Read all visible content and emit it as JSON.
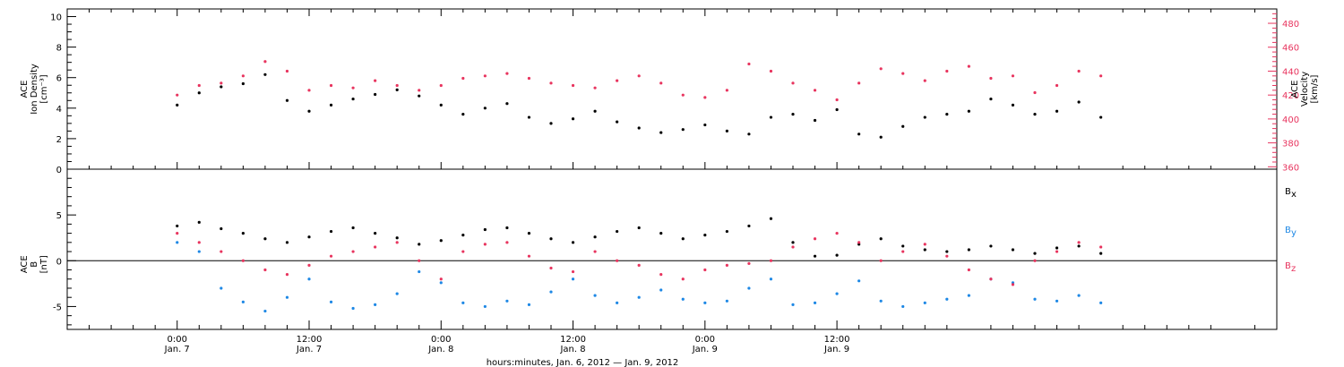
{
  "colors": {
    "black": "#000000",
    "red": "#e8355f",
    "blue": "#1e88e5"
  },
  "chart_data": [
    {
      "type": "scatter",
      "panel": "top",
      "left_axis": {
        "label_line1": "ACE",
        "label_line2": "Ion Density",
        "units": "[cm⁻³]",
        "ylim": [
          0,
          10.5
        ],
        "ticks": [
          0,
          2,
          4,
          6,
          8,
          10
        ]
      },
      "right_axis": {
        "label_line1": "ACE",
        "label_line2": "Velocity",
        "units": "[km/s]",
        "ylim": [
          358,
          492
        ],
        "ticks": [
          360,
          380,
          400,
          420,
          440,
          460,
          480
        ]
      },
      "series": [
        {
          "color": "#000000",
          "axis": "left",
          "x_hours": [
            0,
            2,
            4,
            6,
            8,
            10,
            12,
            14,
            16,
            18,
            20,
            22,
            24,
            26,
            28,
            30,
            32,
            34,
            36,
            38,
            40,
            42,
            44,
            46,
            48,
            50,
            52,
            54,
            56,
            58,
            60,
            62,
            64,
            66,
            68,
            70,
            72,
            74,
            76,
            78,
            80,
            82,
            84
          ],
          "values": [
            4.2,
            5.0,
            5.4,
            5.6,
            6.2,
            4.5,
            3.8,
            4.2,
            4.6,
            4.9,
            5.2,
            4.8,
            4.2,
            3.6,
            4.0,
            4.3,
            3.4,
            3.0,
            3.3,
            3.8,
            3.1,
            2.7,
            2.4,
            2.6,
            2.9,
            2.5,
            2.3,
            3.4,
            3.6,
            3.2,
            3.9,
            2.3,
            2.1,
            2.8,
            3.4,
            3.6,
            3.8,
            4.6,
            4.2,
            3.6,
            3.8,
            4.4,
            3.4
          ]
        },
        {
          "color": "#e8355f",
          "axis": "right",
          "x_hours": [
            0,
            2,
            4,
            6,
            8,
            10,
            12,
            14,
            16,
            18,
            20,
            22,
            24,
            26,
            28,
            30,
            32,
            34,
            36,
            38,
            40,
            42,
            44,
            46,
            48,
            50,
            52,
            54,
            56,
            58,
            60,
            62,
            64,
            66,
            68,
            70,
            72,
            74,
            76,
            78,
            80,
            82,
            84
          ],
          "values": [
            420,
            428,
            430,
            436,
            448,
            440,
            424,
            428,
            426,
            432,
            428,
            424,
            428,
            434,
            436,
            438,
            434,
            430,
            428,
            426,
            432,
            436,
            430,
            420,
            418,
            424,
            446,
            440,
            430,
            424,
            416,
            430,
            442,
            438,
            432,
            440,
            444,
            434,
            436,
            422,
            428,
            440,
            436
          ]
        }
      ]
    },
    {
      "type": "scatter",
      "panel": "bottom",
      "left_axis": {
        "label_line1": "ACE",
        "label_line2": "B",
        "units": "[nT]",
        "ylim": [
          -7.5,
          10
        ],
        "ticks": [
          -5,
          0,
          5
        ]
      },
      "series": [
        {
          "name": "Bx",
          "color": "#000000",
          "x_hours": [
            0,
            2,
            4,
            6,
            8,
            10,
            12,
            14,
            16,
            18,
            20,
            22,
            24,
            26,
            28,
            30,
            32,
            34,
            36,
            38,
            40,
            42,
            44,
            46,
            48,
            50,
            52,
            54,
            56,
            58,
            60,
            62,
            64,
            66,
            68,
            70,
            72,
            74,
            76,
            78,
            80,
            82,
            84
          ],
          "values": [
            3.8,
            4.2,
            3.5,
            3.0,
            2.4,
            2.0,
            2.6,
            3.2,
            3.6,
            3.0,
            2.5,
            1.8,
            2.2,
            2.8,
            3.4,
            3.6,
            3.0,
            2.4,
            2.0,
            2.6,
            3.2,
            3.6,
            3.0,
            2.4,
            2.8,
            3.2,
            3.8,
            4.6,
            2.0,
            0.5,
            0.6,
            1.8,
            2.4,
            1.6,
            1.2,
            1.0,
            1.2,
            1.6,
            1.2,
            0.8,
            1.4,
            1.6,
            0.8
          ]
        },
        {
          "name": "By",
          "color": "#1e88e5",
          "x_hours": [
            0,
            2,
            4,
            6,
            8,
            10,
            12,
            14,
            16,
            18,
            20,
            22,
            24,
            26,
            28,
            30,
            32,
            34,
            36,
            38,
            40,
            42,
            44,
            46,
            48,
            50,
            52,
            54,
            56,
            58,
            60,
            62,
            64,
            66,
            68,
            70,
            72,
            74,
            76,
            78,
            80,
            82,
            84
          ],
          "values": [
            2.0,
            1.0,
            -3.0,
            -4.5,
            -5.5,
            -4.0,
            -2.0,
            -4.5,
            -5.2,
            -4.8,
            -3.6,
            -1.2,
            -2.4,
            -4.6,
            -5.0,
            -4.4,
            -4.8,
            -3.4,
            -2.0,
            -3.8,
            -4.6,
            -4.0,
            -3.2,
            -4.2,
            -4.6,
            -4.4,
            -3.0,
            -2.0,
            -4.8,
            -4.6,
            -3.6,
            -2.2,
            -4.4,
            -5.0,
            -4.6,
            -4.2,
            -3.8,
            -2.0,
            -2.4,
            -4.2,
            -4.4,
            -3.8,
            -4.6
          ]
        },
        {
          "name": "Bz",
          "color": "#e8355f",
          "x_hours": [
            0,
            2,
            4,
            6,
            8,
            10,
            12,
            14,
            16,
            18,
            20,
            22,
            24,
            26,
            28,
            30,
            32,
            34,
            36,
            38,
            40,
            42,
            44,
            46,
            48,
            50,
            52,
            54,
            56,
            58,
            60,
            62,
            64,
            66,
            68,
            70,
            72,
            74,
            76,
            78,
            80,
            82,
            84
          ],
          "values": [
            3.0,
            2.0,
            1.0,
            0.0,
            -1.0,
            -1.5,
            -0.5,
            0.5,
            1.0,
            1.5,
            2.0,
            0.0,
            -2.0,
            1.0,
            1.8,
            2.0,
            0.5,
            -0.8,
            -1.2,
            1.0,
            0.0,
            -0.5,
            -1.5,
            -2.0,
            -1.0,
            -0.5,
            -0.3,
            0.0,
            1.5,
            2.4,
            3.0,
            2.0,
            0.0,
            1.0,
            1.8,
            0.5,
            -1.0,
            -2.0,
            -2.6,
            0.0,
            1.0,
            2.0,
            1.5
          ]
        }
      ],
      "legend": {
        "placement": "right",
        "entries": [
          {
            "base": "B",
            "sub": "x",
            "color": "#000000"
          },
          {
            "base": "B",
            "sub": "y",
            "color": "#1e88e5"
          },
          {
            "base": "B",
            "sub": "z",
            "color": "#e8355f"
          }
        ]
      }
    }
  ],
  "x_axis": {
    "range_hours": [
      -10,
      100
    ],
    "ticks": [
      {
        "hours": 0,
        "time": "0:00",
        "date": "Jan. 7"
      },
      {
        "hours": 12,
        "time": "12:00",
        "date": "Jan. 7"
      },
      {
        "hours": 24,
        "time": "0:00",
        "date": "Jan. 8"
      },
      {
        "hours": 36,
        "time": "12:00",
        "date": "Jan. 8"
      },
      {
        "hours": 48,
        "time": "0:00",
        "date": "Jan. 9"
      },
      {
        "hours": 60,
        "time": "12:00",
        "date": "Jan. 9"
      }
    ],
    "title": "hours:minutes, Jan.  6, 2012 — Jan.  9, 2012"
  }
}
